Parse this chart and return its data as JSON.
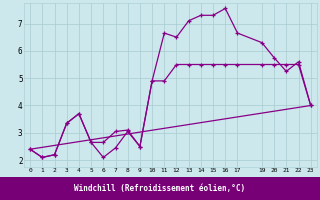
{
  "background_color": "#cce8ec",
  "grid_color": "#a8ccd0",
  "line_color_dark": "#880088",
  "line_color_mid": "#aa22aa",
  "xlabel": "Windchill (Refroidissement éolien,°C)",
  "xlabel_bg": "#770077",
  "ylim": [
    1.75,
    7.75
  ],
  "xlim": [
    -0.5,
    23.5
  ],
  "yticks": [
    2,
    3,
    4,
    5,
    6,
    7
  ],
  "xticks": [
    0,
    1,
    2,
    3,
    4,
    5,
    6,
    7,
    8,
    9,
    10,
    11,
    12,
    13,
    14,
    15,
    16,
    17,
    19,
    20,
    21,
    22,
    23
  ],
  "line1_x": [
    0,
    1,
    2,
    3,
    4,
    5,
    6,
    7,
    8,
    9,
    10,
    11,
    12,
    13,
    14,
    15,
    16,
    17,
    19,
    20,
    21,
    22,
    23
  ],
  "line1_y": [
    2.4,
    2.1,
    2.2,
    3.35,
    3.7,
    2.65,
    2.65,
    3.05,
    3.1,
    2.5,
    4.9,
    6.65,
    6.5,
    7.1,
    7.3,
    7.3,
    7.55,
    6.65,
    6.3,
    5.75,
    5.25,
    5.6,
    4.0
  ],
  "line2_x": [
    0,
    1,
    2,
    3,
    4,
    5,
    6,
    7,
    8,
    9,
    10,
    11,
    12,
    13,
    14,
    15,
    16,
    17,
    19,
    20,
    21,
    22,
    23
  ],
  "line2_y": [
    2.4,
    2.1,
    2.2,
    3.35,
    3.7,
    2.65,
    2.1,
    2.45,
    3.05,
    2.5,
    4.9,
    4.9,
    5.5,
    5.5,
    5.5,
    5.5,
    5.5,
    5.5,
    5.5,
    5.5,
    5.5,
    5.5,
    4.0
  ],
  "line3_x": [
    0,
    23
  ],
  "line3_y": [
    2.4,
    4.0
  ]
}
